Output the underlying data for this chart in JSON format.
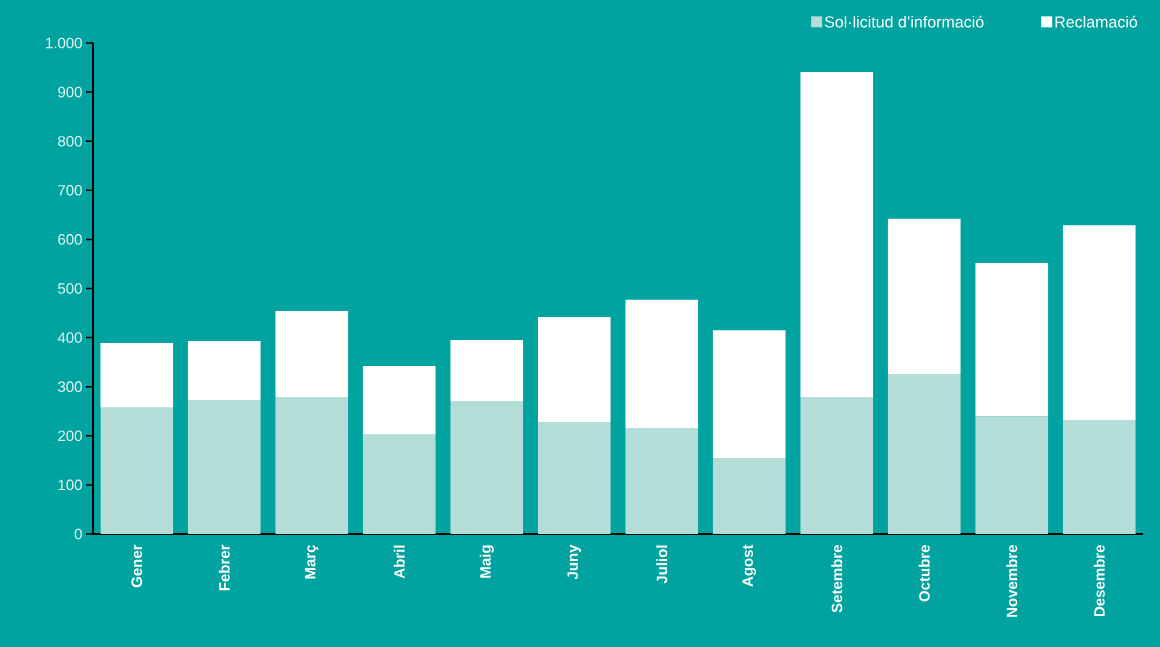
{
  "chart_data": {
    "type": "bar",
    "stacked": true,
    "categories": [
      "Gener",
      "Febrer",
      "Març",
      "Abril",
      "Maig",
      "Juny",
      "Juliol",
      "Agost",
      "Setembre",
      "Octubre",
      "Novembre",
      "Desembre"
    ],
    "series": [
      {
        "name": "Sol·licitud d’informació",
        "color": "#b5ddd8",
        "values": [
          257,
          273,
          279,
          202,
          271,
          228,
          216,
          155,
          279,
          326,
          240,
          232
        ]
      },
      {
        "name": "Reclamació",
        "color": "#ffffff",
        "values": [
          132,
          120,
          175,
          140,
          124,
          214,
          261,
          260,
          662,
          316,
          312,
          397
        ]
      }
    ],
    "ylim": [
      0,
      1000
    ],
    "yticks": [
      0,
      100,
      200,
      300,
      400,
      500,
      600,
      700,
      800,
      900,
      {
        "value": 1000,
        "label": "1.000"
      }
    ],
    "grid": false,
    "legend": "top right"
  }
}
